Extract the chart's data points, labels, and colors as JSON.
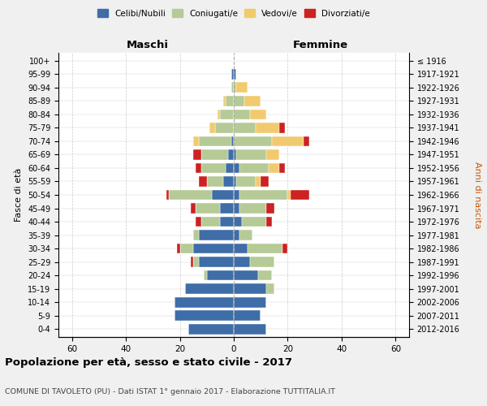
{
  "age_groups": [
    "0-4",
    "5-9",
    "10-14",
    "15-19",
    "20-24",
    "25-29",
    "30-34",
    "35-39",
    "40-44",
    "45-49",
    "50-54",
    "55-59",
    "60-64",
    "65-69",
    "70-74",
    "75-79",
    "80-84",
    "85-89",
    "90-94",
    "95-99",
    "100+"
  ],
  "birth_years": [
    "2012-2016",
    "2007-2011",
    "2002-2006",
    "1997-2001",
    "1992-1996",
    "1987-1991",
    "1982-1986",
    "1977-1981",
    "1972-1976",
    "1967-1971",
    "1962-1966",
    "1957-1961",
    "1952-1956",
    "1947-1951",
    "1942-1946",
    "1937-1941",
    "1932-1936",
    "1927-1931",
    "1922-1926",
    "1917-1921",
    "≤ 1916"
  ],
  "colors": {
    "celibi": "#3e6da8",
    "coniugati": "#b5ca96",
    "vedovi": "#f2ca6e",
    "divorziati": "#cc2222"
  },
  "maschi": {
    "celibi": [
      17,
      22,
      22,
      18,
      10,
      13,
      15,
      13,
      5,
      5,
      8,
      4,
      3,
      2,
      1,
      0,
      0,
      0,
      0,
      1,
      0
    ],
    "coniugati": [
      0,
      0,
      0,
      0,
      1,
      2,
      5,
      2,
      7,
      9,
      16,
      6,
      9,
      10,
      12,
      7,
      5,
      3,
      1,
      0,
      0
    ],
    "vedovi": [
      0,
      0,
      0,
      0,
      0,
      0,
      0,
      0,
      0,
      0,
      0,
      0,
      0,
      0,
      2,
      2,
      1,
      1,
      0,
      0,
      0
    ],
    "divorziati": [
      0,
      0,
      0,
      0,
      0,
      1,
      1,
      0,
      2,
      2,
      1,
      3,
      2,
      3,
      0,
      0,
      0,
      0,
      0,
      0,
      0
    ]
  },
  "femmine": {
    "nubili": [
      12,
      10,
      12,
      12,
      9,
      6,
      5,
      2,
      3,
      2,
      2,
      1,
      2,
      1,
      0,
      0,
      0,
      0,
      0,
      1,
      0
    ],
    "coniugate": [
      0,
      0,
      0,
      3,
      5,
      9,
      13,
      5,
      9,
      10,
      18,
      7,
      11,
      11,
      14,
      8,
      6,
      4,
      1,
      0,
      0
    ],
    "vedove": [
      0,
      0,
      0,
      0,
      0,
      0,
      0,
      0,
      0,
      0,
      1,
      2,
      4,
      5,
      12,
      9,
      6,
      6,
      4,
      0,
      0
    ],
    "divorziate": [
      0,
      0,
      0,
      0,
      0,
      0,
      2,
      0,
      2,
      3,
      7,
      3,
      2,
      0,
      2,
      2,
      0,
      0,
      0,
      0,
      0
    ]
  },
  "title": "Popolazione per età, sesso e stato civile - 2017",
  "subtitle": "COMUNE DI TAVOLETO (PU) - Dati ISTAT 1° gennaio 2017 - Elaborazione TUTTITALIA.IT",
  "xlabel_left": "Maschi",
  "xlabel_right": "Femmine",
  "ylabel_left": "Fasce di età",
  "ylabel_right": "Anni di nascita",
  "xlim": 65,
  "legend_labels": [
    "Celibi/Nubili",
    "Coniugati/e",
    "Vedovi/e",
    "Divorziati/e"
  ],
  "bg_color": "#f0f0f0",
  "plot_bg_color": "#ffffff"
}
